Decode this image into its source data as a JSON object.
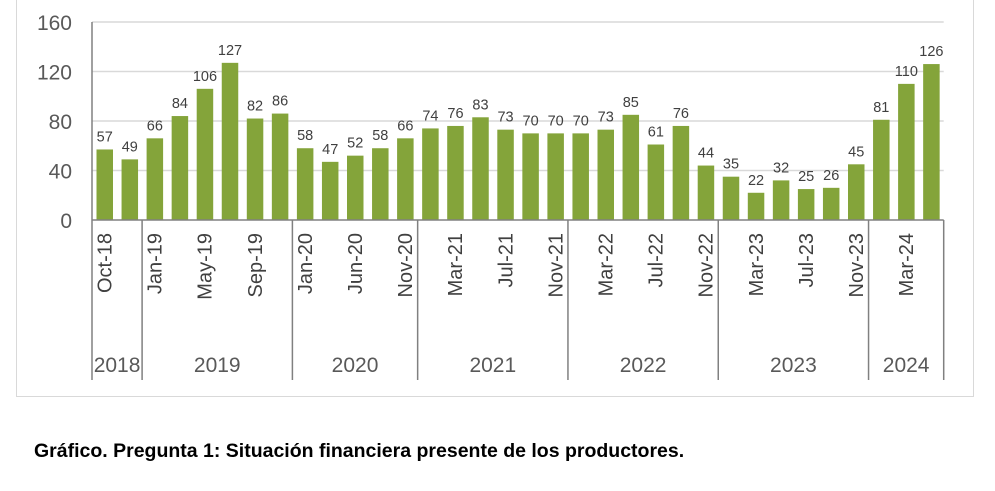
{
  "chart_data": {
    "type": "bar",
    "title": "",
    "xlabel": "",
    "ylabel": "",
    "ylim": [
      0,
      160
    ],
    "yticks": [
      0,
      40,
      80,
      120,
      160
    ],
    "grid": true,
    "color": "#84a43a",
    "values": [
      57,
      49,
      66,
      84,
      106,
      127,
      82,
      86,
      58,
      47,
      52,
      58,
      66,
      74,
      76,
      83,
      73,
      70,
      70,
      70,
      73,
      85,
      61,
      76,
      44,
      35,
      22,
      32,
      25,
      26,
      45,
      81,
      110,
      126
    ],
    "tick_labels": [
      {
        "index": 0,
        "label": "Oct-18"
      },
      {
        "index": 2,
        "label": "Jan-19"
      },
      {
        "index": 4,
        "label": "May-19"
      },
      {
        "index": 6,
        "label": "Sep-19"
      },
      {
        "index": 8,
        "label": "Jan-20"
      },
      {
        "index": 10,
        "label": "Jun-20"
      },
      {
        "index": 12,
        "label": "Nov-20"
      },
      {
        "index": 14,
        "label": "Mar-21"
      },
      {
        "index": 16,
        "label": "Jul-21"
      },
      {
        "index": 18,
        "label": "Nov-21"
      },
      {
        "index": 20,
        "label": "Mar-22"
      },
      {
        "index": 22,
        "label": "Jul-22"
      },
      {
        "index": 24,
        "label": "Nov-22"
      },
      {
        "index": 26,
        "label": "Mar-23"
      },
      {
        "index": 28,
        "label": "Jul-23"
      },
      {
        "index": 30,
        "label": "Nov-23"
      },
      {
        "index": 32,
        "label": "Mar-24"
      }
    ],
    "years": [
      {
        "label": "2018",
        "start": 0,
        "end": 1
      },
      {
        "label": "2019",
        "start": 2,
        "end": 7
      },
      {
        "label": "2020",
        "start": 8,
        "end": 12
      },
      {
        "label": "2021",
        "start": 13,
        "end": 18
      },
      {
        "label": "2022",
        "start": 19,
        "end": 24
      },
      {
        "label": "2023",
        "start": 25,
        "end": 30
      },
      {
        "label": "2024",
        "start": 31,
        "end": 33
      }
    ]
  },
  "caption": "Gráfico. Pregunta 1: Situación financiera presente de los productores."
}
